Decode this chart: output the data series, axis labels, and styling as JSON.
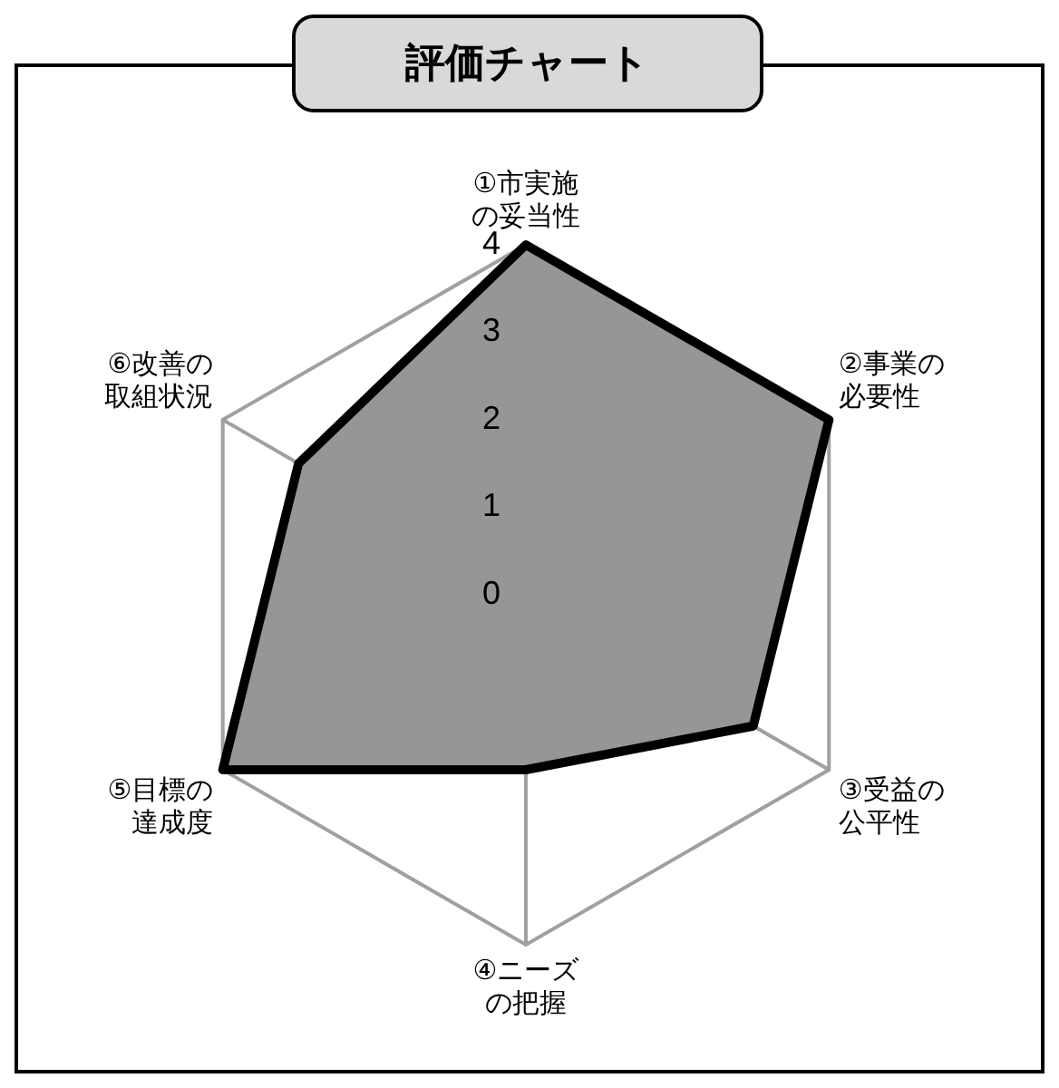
{
  "chart_data": {
    "type": "radar",
    "title": "評価チャート",
    "categories": [
      "①市実施の妥当性",
      "②事業の必要性",
      "③受益の公平性",
      "④ニーズの把握",
      "⑤目標の達成度",
      "⑥改善の取組状況"
    ],
    "series": [
      {
        "color": "#969696",
        "values": [
          4,
          4,
          3,
          2,
          4,
          3
        ]
      }
    ],
    "ylim": [
      0,
      4
    ],
    "yticks": [
      0,
      1,
      2,
      3,
      4
    ]
  }
}
